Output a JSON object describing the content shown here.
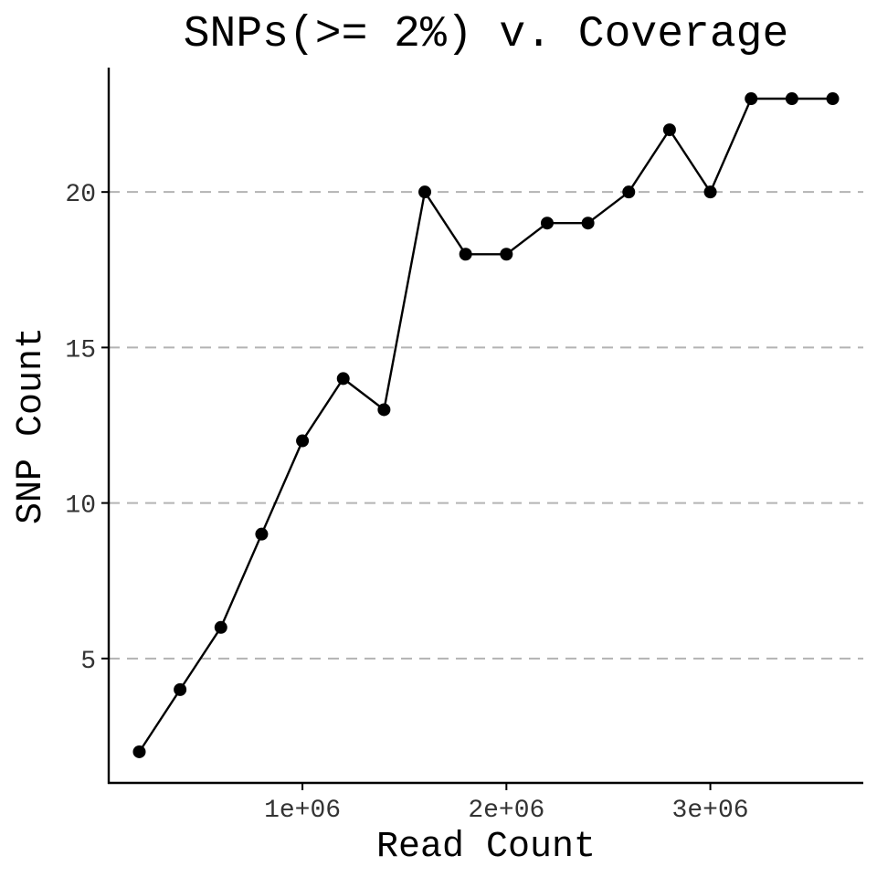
{
  "chart_data": {
    "type": "line",
    "title": "SNPs(>= 2%) v. Coverage",
    "xlabel": "Read Count",
    "ylabel": "SNP Count",
    "xlim": [
      50000,
      3750000
    ],
    "ylim": [
      1,
      24
    ],
    "x_ticks": [
      1000000,
      2000000,
      3000000
    ],
    "x_tick_labels": [
      "1e+06",
      "2e+06",
      "3e+06"
    ],
    "y_ticks": [
      5,
      10,
      15,
      20
    ],
    "y_tick_labels": [
      "5",
      "10",
      "15",
      "20"
    ],
    "grid": "horizontal-major-dashed",
    "legend": "none",
    "line_color": "#000000",
    "grid_color": "#b3b3b3",
    "x": [
      200000,
      400000,
      600000,
      800000,
      1000000,
      1200000,
      1400000,
      1600000,
      1800000,
      2000000,
      2200000,
      2400000,
      2600000,
      2800000,
      3000000,
      3200000,
      3400000,
      3600000
    ],
    "y": [
      2,
      4,
      6,
      9,
      12,
      14,
      13,
      20,
      18,
      18,
      19,
      19,
      20,
      22,
      20,
      23,
      23,
      23
    ]
  }
}
